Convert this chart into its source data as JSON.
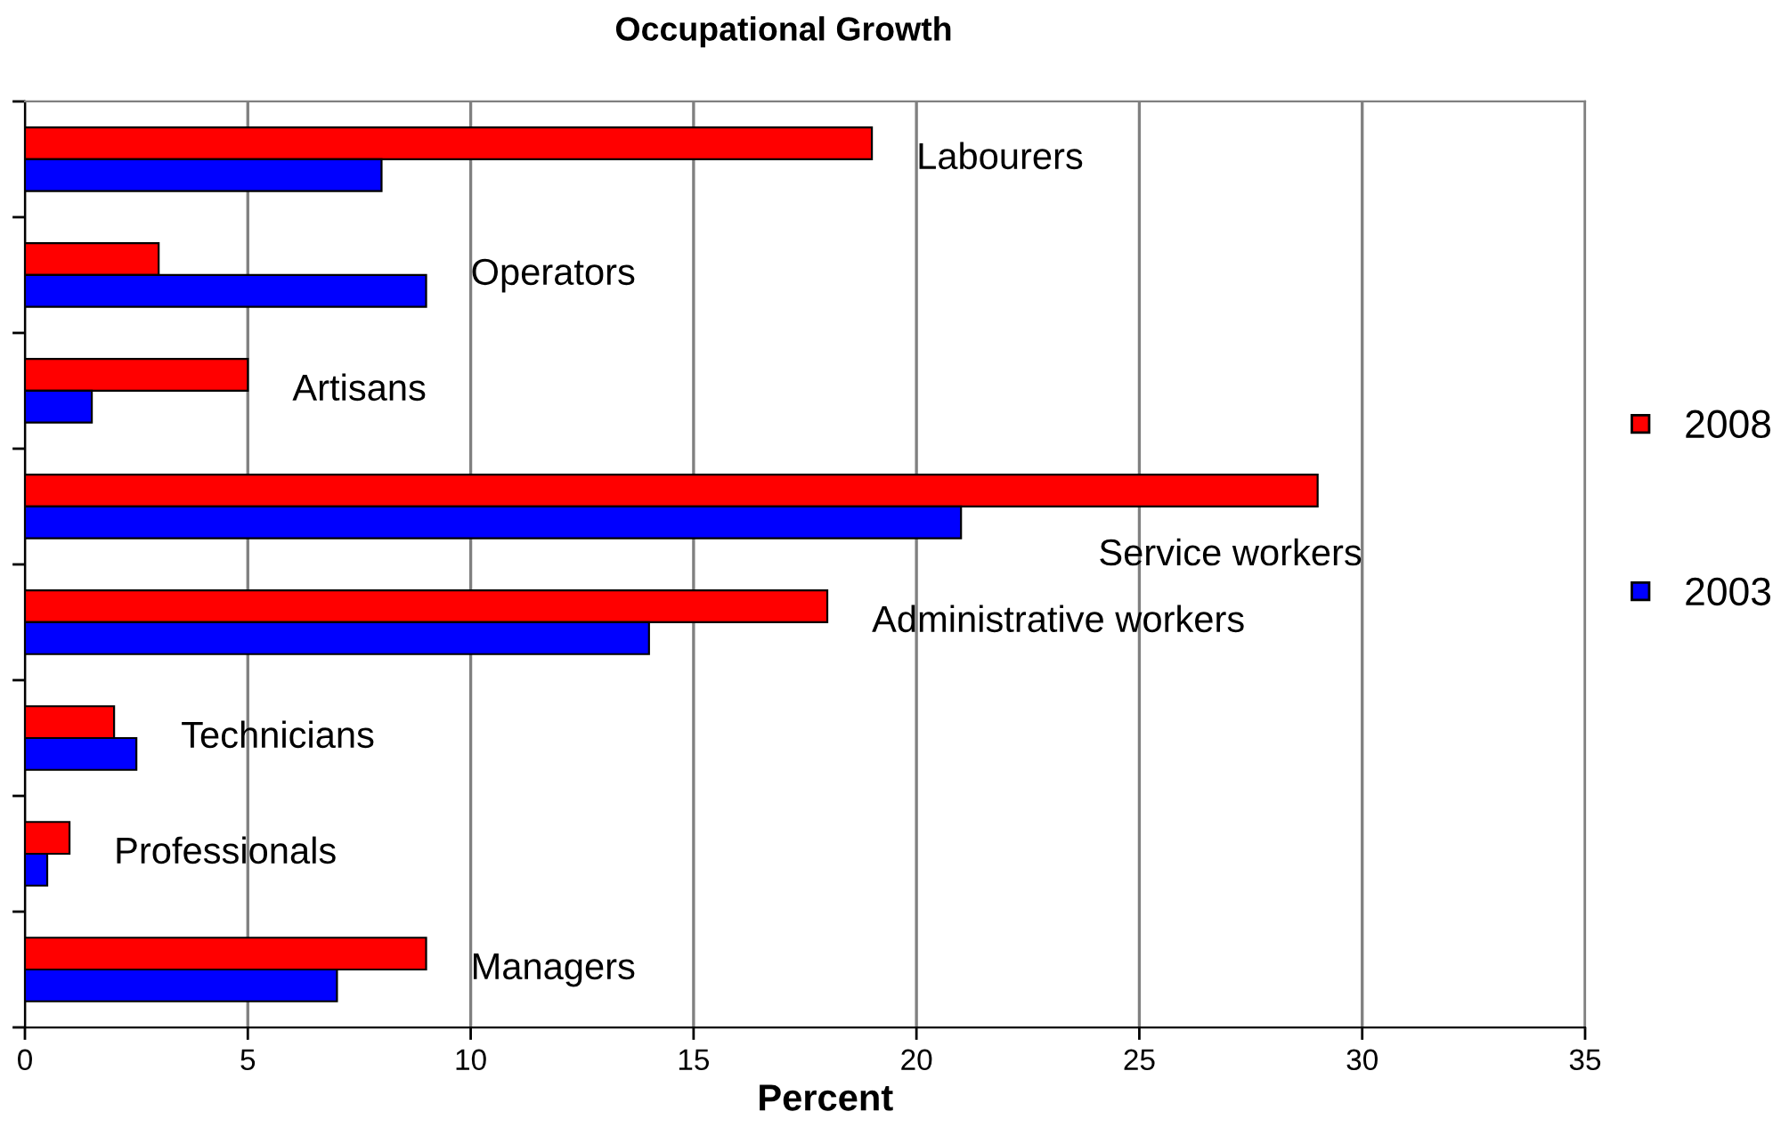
{
  "chart_data": {
    "type": "bar",
    "orientation": "horizontal",
    "title": "Occupational Growth",
    "xlabel": "Percent",
    "categories": [
      "Labourers",
      "Operators",
      "Artisans",
      "Service workers",
      "Administrative workers",
      "Technicians",
      "Professionals",
      "Managers"
    ],
    "series": [
      {
        "name": "2008",
        "color": "#ff0000",
        "values": [
          19,
          3,
          5,
          29,
          18,
          2,
          1,
          9
        ]
      },
      {
        "name": "2003",
        "color": "#0000ff",
        "values": [
          8,
          9,
          1.5,
          21,
          14,
          2.5,
          0.5,
          7
        ]
      }
    ],
    "xlim": [
      0,
      35
    ],
    "xticks": [
      0,
      5,
      10,
      15,
      20,
      25,
      30,
      35
    ],
    "grid": "x",
    "legend": "right",
    "tick_labels": "x"
  }
}
